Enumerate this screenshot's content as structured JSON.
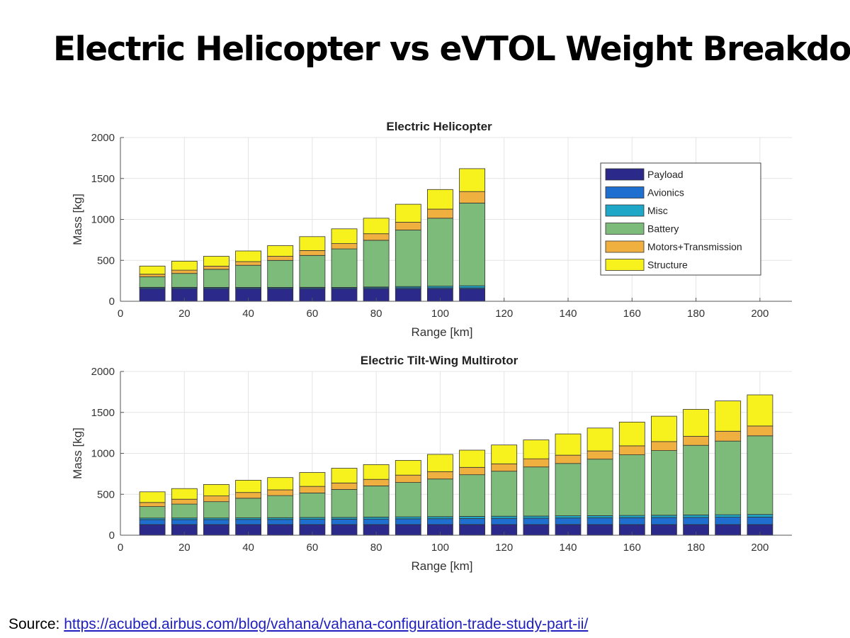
{
  "slide": {
    "title": "Electric Helicopter vs eVTOL Weight Breakdown",
    "source_prefix": "Source:",
    "source_link": "https://acubed.airbus.com/blog/vahana/vahana-configuration-trade-study-part-ii/"
  },
  "components": [
    "Payload",
    "Avionics",
    "Misc",
    "Battery",
    "Motors+Transmission",
    "Structure"
  ],
  "colors": {
    "Payload": "#2b2a8a",
    "Avionics": "#1f6fd0",
    "Misc": "#1fa7c7",
    "Battery": "#7dbb7a",
    "Motors+Transmission": "#f0b040",
    "Structure": "#f7f21e"
  },
  "chart_data": [
    {
      "type": "bar",
      "stacked": true,
      "title": "Electric Helicopter",
      "xlabel": "Range [km]",
      "ylabel": "Mass [kg]",
      "xlim": [
        0,
        210
      ],
      "ylim": [
        0,
        2000
      ],
      "xticks": [
        0,
        20,
        40,
        60,
        80,
        100,
        120,
        140,
        160,
        180,
        200
      ],
      "yticks": [
        0,
        500,
        1000,
        1500,
        2000
      ],
      "grid": true,
      "legend": "top-right",
      "x": [
        10,
        20,
        30,
        40,
        50,
        60,
        70,
        80,
        90,
        100,
        110
      ],
      "series": [
        {
          "name": "Payload",
          "values": [
            150,
            150,
            150,
            150,
            150,
            150,
            150,
            150,
            150,
            150,
            150
          ]
        },
        {
          "name": "Avionics",
          "values": [
            15,
            15,
            15,
            15,
            15,
            15,
            15,
            15,
            15,
            15,
            15
          ]
        },
        {
          "name": "Misc",
          "values": [
            5,
            5,
            5,
            5,
            5,
            5,
            5,
            10,
            15,
            20,
            25
          ]
        },
        {
          "name": "Battery",
          "values": [
            130,
            170,
            220,
            270,
            330,
            390,
            470,
            570,
            690,
            830,
            1010
          ]
        },
        {
          "name": "Motors+Transmission",
          "values": [
            30,
            40,
            40,
            45,
            50,
            60,
            65,
            80,
            95,
            110,
            140
          ]
        },
        {
          "name": "Structure",
          "values": [
            100,
            110,
            120,
            130,
            130,
            170,
            180,
            190,
            220,
            240,
            280
          ]
        }
      ]
    },
    {
      "type": "bar",
      "stacked": true,
      "title": "Electric Tilt-Wing Multirotor",
      "xlabel": "Range [km]",
      "ylabel": "Mass [kg]",
      "xlim": [
        0,
        210
      ],
      "ylim": [
        0,
        2000
      ],
      "xticks": [
        0,
        20,
        40,
        60,
        80,
        100,
        120,
        140,
        160,
        180,
        200
      ],
      "yticks": [
        0,
        500,
        1000,
        1500,
        2000
      ],
      "grid": true,
      "x": [
        10,
        20,
        30,
        40,
        50,
        60,
        70,
        80,
        90,
        100,
        110,
        120,
        130,
        140,
        150,
        160,
        170,
        180,
        190,
        200
      ],
      "series": [
        {
          "name": "Payload",
          "values": [
            130,
            130,
            130,
            130,
            130,
            130,
            130,
            130,
            130,
            130,
            130,
            130,
            130,
            130,
            130,
            130,
            130,
            130,
            130,
            130
          ]
        },
        {
          "name": "Avionics",
          "values": [
            60,
            60,
            60,
            62,
            62,
            64,
            66,
            68,
            70,
            72,
            74,
            76,
            78,
            80,
            82,
            84,
            86,
            88,
            90,
            92
          ]
        },
        {
          "name": "Misc",
          "values": [
            20,
            20,
            20,
            20,
            22,
            22,
            22,
            24,
            24,
            25,
            25,
            26,
            26,
            27,
            27,
            28,
            28,
            30,
            30,
            32
          ]
        },
        {
          "name": "Battery",
          "values": [
            140,
            170,
            200,
            240,
            270,
            300,
            340,
            380,
            420,
            460,
            510,
            550,
            600,
            640,
            690,
            740,
            790,
            850,
            900,
            960
          ]
        },
        {
          "name": "Motors+Transmission",
          "values": [
            50,
            60,
            70,
            70,
            70,
            80,
            80,
            80,
            90,
            90,
            90,
            90,
            100,
            100,
            100,
            110,
            110,
            110,
            120,
            120
          ]
        },
        {
          "name": "Structure",
          "values": [
            130,
            130,
            140,
            150,
            150,
            170,
            180,
            180,
            180,
            210,
            210,
            230,
            230,
            260,
            280,
            290,
            310,
            330,
            370,
            380
          ]
        }
      ]
    }
  ]
}
